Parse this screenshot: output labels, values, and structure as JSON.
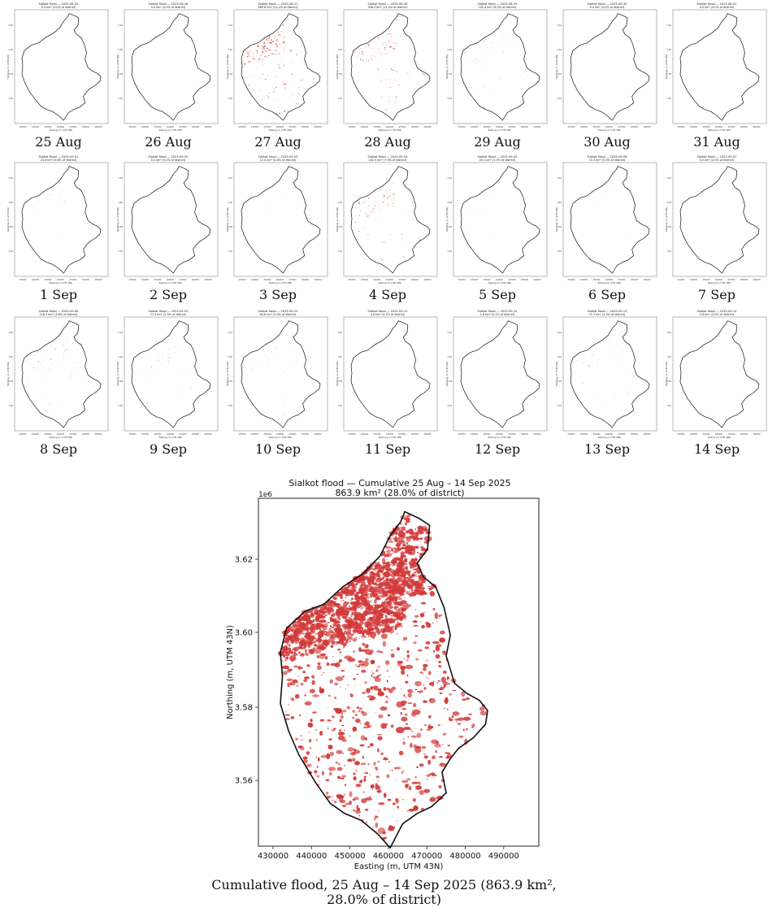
{
  "thumbnails": [
    {
      "date": "2025-08-25",
      "caption": "25 Aug",
      "area": "0.4 km² (0.0% of district)",
      "flood": 0
    },
    {
      "date": "2025-08-26",
      "caption": "26 Aug",
      "area": "0.0 km² (0.0% of district)",
      "flood": 0
    },
    {
      "date": "2025-08-27",
      "caption": "27 Aug",
      "area": "689.6 km² (22.4% of district)",
      "flood": 0.95
    },
    {
      "date": "2025-08-28",
      "caption": "28 Aug",
      "area": "338.3 km² (11.0% of district)",
      "flood": 0.7
    },
    {
      "date": "2025-08-29",
      "caption": "29 Aug",
      "area": "192.4 km² (6.3% of district)",
      "flood": 0.3
    },
    {
      "date": "2025-08-30",
      "caption": "30 Aug",
      "area": "0.0 km² (0.0% of district)",
      "flood": 0
    },
    {
      "date": "2025-08-31",
      "caption": "31 Aug",
      "area": "0.0 km² (0.0% of district)",
      "flood": 0
    },
    {
      "date": "2025-09-01",
      "caption": "1 Sep",
      "area": "24.4 km² (0.8% of district)",
      "flood": 0.12
    },
    {
      "date": "2025-09-02",
      "caption": "2 Sep",
      "area": "0.2 km² (0.0% of district)",
      "flood": 0.01
    },
    {
      "date": "2025-09-03",
      "caption": "3 Sep",
      "area": "12.4 km² (0.4% of district)",
      "flood": 0.08
    },
    {
      "date": "2025-09-04",
      "caption": "4 Sep",
      "area": "242.5 km² (7.9% of district)",
      "flood": 0.6
    },
    {
      "date": "2025-09-05",
      "caption": "5 Sep",
      "area": "45.1 km² (1.5% of district)",
      "flood": 0.12
    },
    {
      "date": "2025-09-06",
      "caption": "6 Sep",
      "area": "15.3 km² (0.5% of district)",
      "flood": 0.08
    },
    {
      "date": "2025-09-07",
      "caption": "7 Sep",
      "area": "0.0 km² (0.0% of district)",
      "flood": 0
    },
    {
      "date": "2025-09-08",
      "caption": "8 Sep",
      "area": "118.3 km² (3.8% of district)",
      "flood": 0.35
    },
    {
      "date": "2025-09-09",
      "caption": "9 Sep",
      "area": "77.4 km² (2.5% of district)",
      "flood": 0.3
    },
    {
      "date": "2025-09-10",
      "caption": "10 Sep",
      "area": "60.8 km² (2.0% of district)",
      "flood": 0.22
    },
    {
      "date": "2025-09-11",
      "caption": "11 Sep",
      "area": "4.6 km² (0.1% of district)",
      "flood": 0.02
    },
    {
      "date": "2025-09-12",
      "caption": "12 Sep",
      "area": "1.6 km² (0.1% of district)",
      "flood": 0.01
    },
    {
      "date": "2025-09-13",
      "caption": "13 Sep",
      "area": "71.1 km² (2.3% of district)",
      "flood": 0.3
    },
    {
      "date": "2025-09-14",
      "caption": "14 Sep",
      "area": "0.8 km² (0.0% of district)",
      "flood": 0.01
    }
  ],
  "thumb_title_prefix": "Sialkot flood — ",
  "main": {
    "title_line1": "Sialkot flood — Cumulative 25 Aug – 14 Sep 2025",
    "title_line2": "863.9 km² (28.0% of district)",
    "xlabel": "Easting (m, UTM 43N)",
    "ylabel": "Northing (m, UTM 43N)",
    "y_exponent": "1e6",
    "xticks": [
      "430000",
      "440000",
      "450000",
      "460000",
      "470000",
      "480000",
      "490000"
    ],
    "yticks": [
      "3.56",
      "3.58",
      "3.60",
      "3.62"
    ],
    "flood_color": "#d23a3a"
  },
  "caption_line1": "Cumulative flood, 25 Aug – 14 Sep 2025 (863.9 km²,",
  "caption_line2": "28.0% of district)"
}
